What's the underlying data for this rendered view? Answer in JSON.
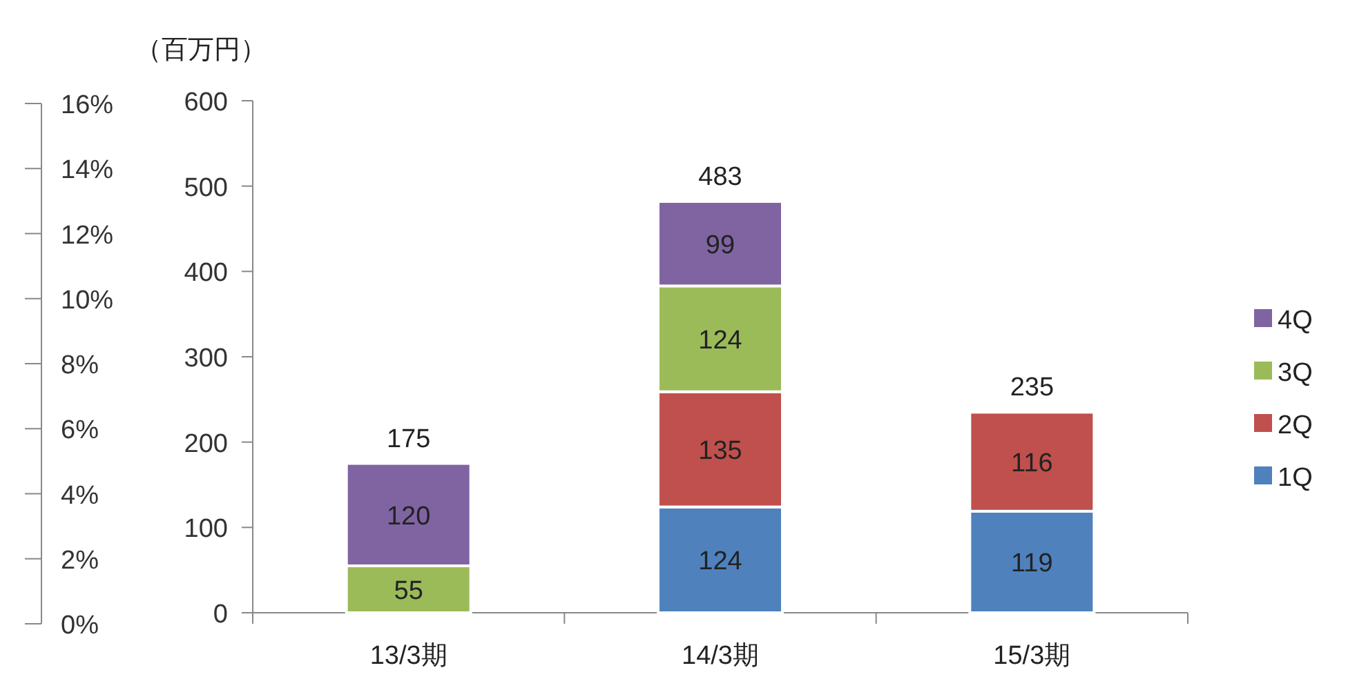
{
  "chart_data": {
    "type": "bar",
    "stacked": true,
    "ylabel": "（百万円）",
    "categories": [
      "13/3期",
      "14/3期",
      "15/3期"
    ],
    "series": [
      {
        "name": "1Q",
        "color": "#4f81bd",
        "values": [
          null,
          124,
          119
        ]
      },
      {
        "name": "2Q",
        "color": "#c0504d",
        "values": [
          null,
          135,
          116
        ]
      },
      {
        "name": "3Q",
        "color": "#9bbb59",
        "values": [
          55,
          124,
          null
        ]
      },
      {
        "name": "4Q",
        "color": "#8064a2",
        "values": [
          120,
          99,
          null
        ]
      }
    ],
    "ylim": [
      0,
      600
    ],
    "yticks": [
      0,
      100,
      200,
      300,
      400,
      500,
      600
    ],
    "y2lim": [
      0,
      16
    ],
    "y2ticks": [
      {
        "value": 0,
        "label": "0%"
      },
      {
        "value": 2,
        "label": "2%"
      },
      {
        "value": 4,
        "label": "4%"
      },
      {
        "value": 6,
        "label": "6%"
      },
      {
        "value": 8,
        "label": "8%"
      },
      {
        "value": 10,
        "label": "10%"
      },
      {
        "value": 12,
        "label": "12%"
      },
      {
        "value": 14,
        "label": "14%"
      },
      {
        "value": 16,
        "label": "16%"
      }
    ],
    "data_labels": true,
    "totals": [
      "175",
      "483",
      "235"
    ],
    "legend": "right"
  }
}
